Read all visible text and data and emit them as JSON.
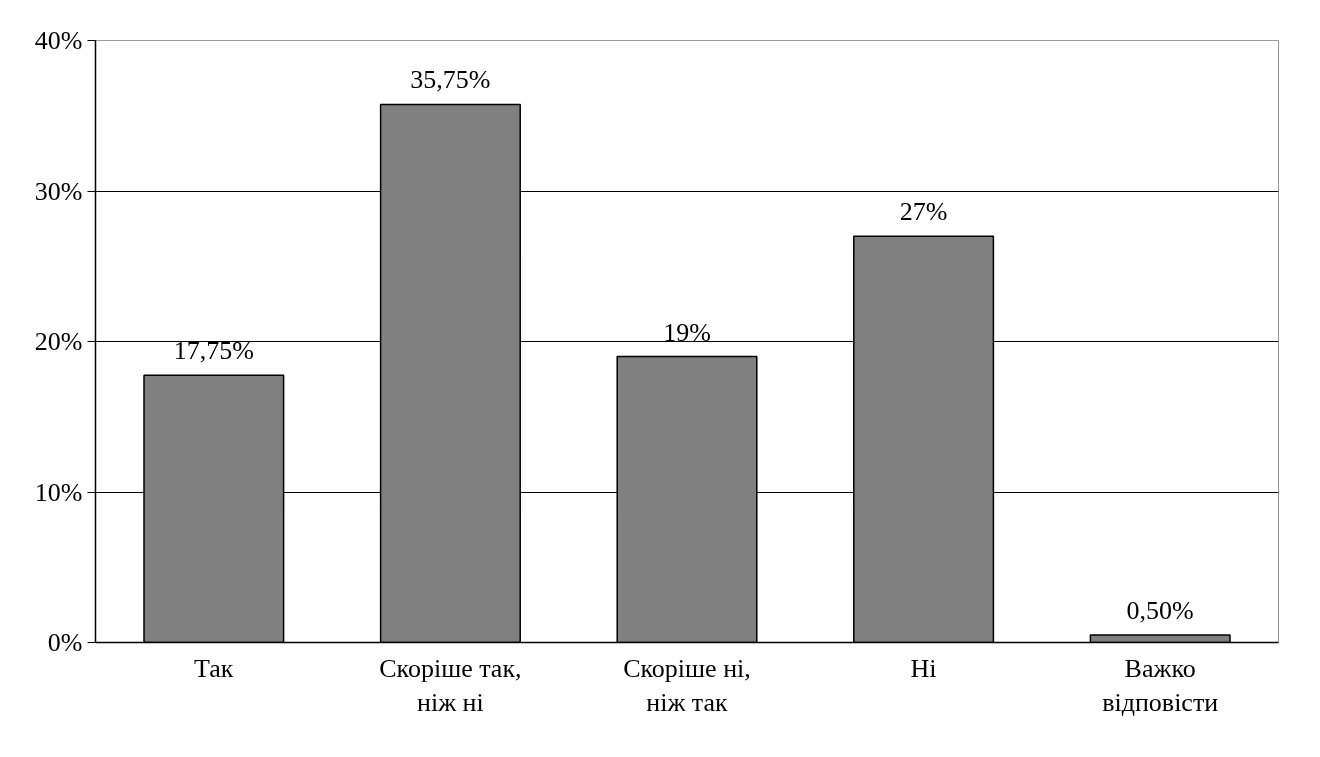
{
  "chart_data": {
    "type": "bar",
    "categories": [
      "Так",
      "Скоріше так, ніж ні",
      "Скоріше ні, ніж так",
      "Ні",
      "Важко відповісти"
    ],
    "values": [
      17.75,
      35.75,
      19,
      27,
      0.5
    ],
    "value_labels": [
      "17,75%",
      "35,75%",
      "19%",
      "27%",
      "0,50%"
    ],
    "color": "#808080",
    "ylim": [
      0,
      40
    ],
    "yticks": [
      {
        "value": 0,
        "label": "0%"
      },
      {
        "value": 10,
        "label": "10%"
      },
      {
        "value": 20,
        "label": "20%"
      },
      {
        "value": 30,
        "label": "30%"
      },
      {
        "value": 40,
        "label": "40%"
      }
    ],
    "grid": "y"
  }
}
